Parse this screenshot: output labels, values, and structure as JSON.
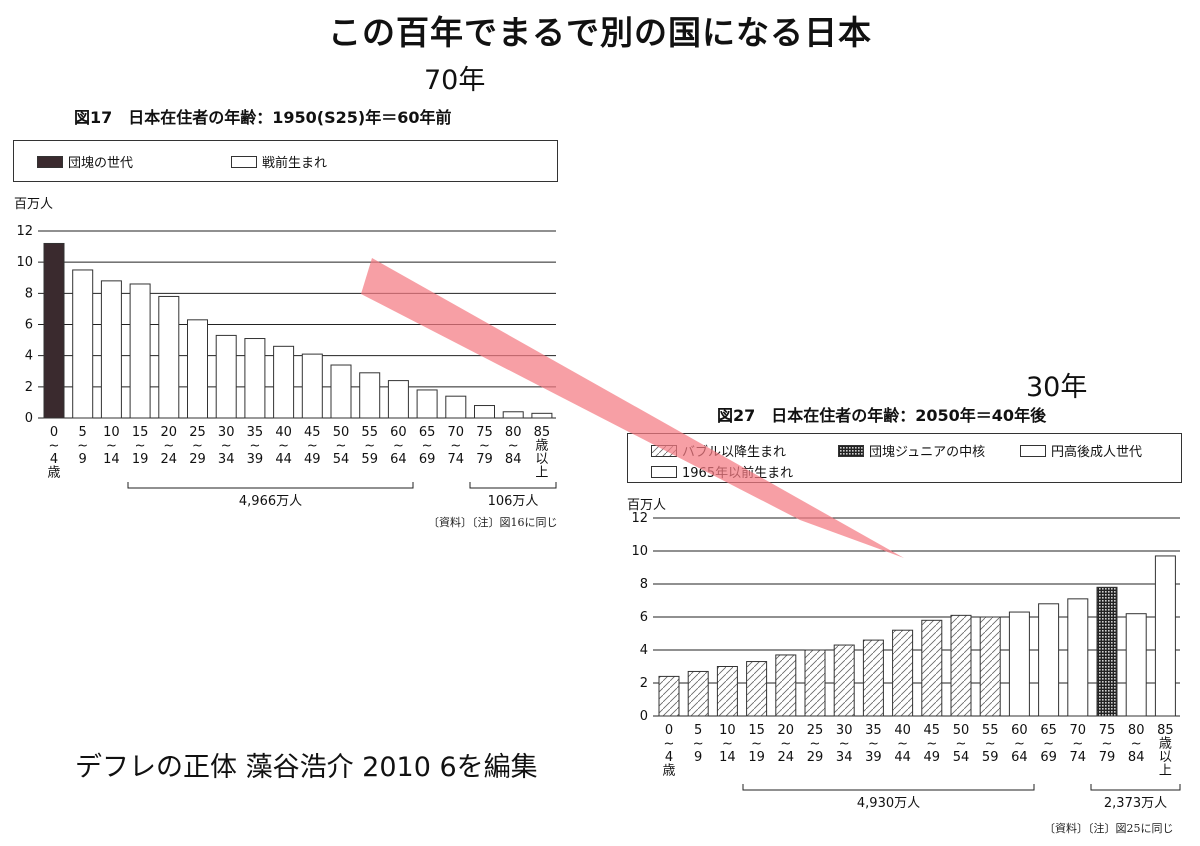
{
  "page_title": "この百年でまるで別の国になる日本",
  "annotations": {
    "fig17_correction": "70年",
    "fig27_correction": "30年"
  },
  "footer_caption": "デフレの正体 藻谷浩介 2010 6を編集",
  "colors": {
    "dankai": "#3a2a2e",
    "arrow": "#f47a82",
    "bar_outline": "#333333",
    "grid": "#222222"
  },
  "fig17": {
    "title": "図17　日本在住者の年齢：1950(S25)年＝60年前",
    "legend": [
      "団塊の世代",
      "戦前生まれ"
    ],
    "unit": "百万人",
    "brace_labels": [
      "4,966万人",
      "106万人"
    ],
    "source": "〔資料〕〔注〕図16に同じ"
  },
  "fig27": {
    "title": "図27　日本在住者の年齢：2050年＝40年後",
    "legend": [
      "バブル以降生まれ",
      "団塊ジュニアの中核",
      "円高後成人世代",
      "1965年以前生まれ"
    ],
    "unit": "百万人",
    "brace_labels": [
      "4,930万人",
      "2,373万人"
    ],
    "source": "〔資料〕〔注〕図25に同じ"
  },
  "chart_data": [
    {
      "type": "bar",
      "title": "図17　日本在住者の年齢：1950(S25)年＝60年前",
      "ylabel": "百万人",
      "ylim": [
        0,
        12
      ],
      "yticks": [
        0,
        2,
        4,
        6,
        8,
        10,
        12
      ],
      "categories": [
        "0~4歳",
        "5~9",
        "10~14",
        "15~19",
        "20~24",
        "25~29",
        "30~34",
        "35~39",
        "40~44",
        "45~49",
        "50~54",
        "55~59",
        "60~64",
        "65~69",
        "70~74",
        "75~79",
        "80~84",
        "85歳以上"
      ],
      "tick_labels": [
        [
          "0",
          "~",
          "4",
          "歳"
        ],
        [
          "5",
          "~",
          "9"
        ],
        [
          "10",
          "~",
          "14"
        ],
        [
          "15",
          "~",
          "19"
        ],
        [
          "20",
          "~",
          "24"
        ],
        [
          "25",
          "~",
          "29"
        ],
        [
          "30",
          "~",
          "34"
        ],
        [
          "35",
          "~",
          "39"
        ],
        [
          "40",
          "~",
          "44"
        ],
        [
          "45",
          "~",
          "49"
        ],
        [
          "50",
          "~",
          "54"
        ],
        [
          "55",
          "~",
          "59"
        ],
        [
          "60",
          "~",
          "64"
        ],
        [
          "65",
          "~",
          "69"
        ],
        [
          "70",
          "~",
          "74"
        ],
        [
          "75",
          "~",
          "79"
        ],
        [
          "80",
          "~",
          "84"
        ],
        [
          "85",
          "歳",
          "以",
          "上"
        ]
      ],
      "values": [
        11.2,
        9.5,
        8.8,
        8.6,
        7.8,
        6.3,
        5.3,
        5.1,
        4.6,
        4.1,
        3.4,
        2.9,
        2.4,
        1.8,
        1.4,
        0.8,
        0.4,
        0.3
      ],
      "styles": [
        "dankai",
        "white",
        "white",
        "white",
        "white",
        "white",
        "white",
        "white",
        "white",
        "white",
        "white",
        "white",
        "white",
        "white",
        "white",
        "white",
        "white",
        "white"
      ],
      "legend": [
        "団塊の世代",
        "戦前生まれ"
      ],
      "grid": true
    },
    {
      "type": "bar",
      "title": "図27　日本在住者の年齢：2050年＝40年後",
      "ylabel": "百万人",
      "ylim": [
        0,
        12
      ],
      "yticks": [
        0,
        2,
        4,
        6,
        8,
        10,
        12
      ],
      "categories": [
        "0~4歳",
        "5~9",
        "10~14",
        "15~19",
        "20~24",
        "25~29",
        "30~34",
        "35~39",
        "40~44",
        "45~49",
        "50~54",
        "55~59",
        "60~64",
        "65~69",
        "70~74",
        "75~79",
        "80~84",
        "85歳以上"
      ],
      "tick_labels": [
        [
          "0",
          "~",
          "4",
          "歳"
        ],
        [
          "5",
          "~",
          "9"
        ],
        [
          "10",
          "~",
          "14"
        ],
        [
          "15",
          "~",
          "19"
        ],
        [
          "20",
          "~",
          "24"
        ],
        [
          "25",
          "~",
          "29"
        ],
        [
          "30",
          "~",
          "34"
        ],
        [
          "35",
          "~",
          "39"
        ],
        [
          "40",
          "~",
          "44"
        ],
        [
          "45",
          "~",
          "49"
        ],
        [
          "50",
          "~",
          "54"
        ],
        [
          "55",
          "~",
          "59"
        ],
        [
          "60",
          "~",
          "64"
        ],
        [
          "65",
          "~",
          "69"
        ],
        [
          "70",
          "~",
          "74"
        ],
        [
          "75",
          "~",
          "79"
        ],
        [
          "80",
          "~",
          "84"
        ],
        [
          "85",
          "歳",
          "以",
          "上"
        ]
      ],
      "values": [
        2.4,
        2.7,
        3.0,
        3.3,
        3.7,
        4.0,
        4.3,
        4.6,
        5.2,
        5.8,
        6.1,
        6.0,
        6.3,
        6.8,
        7.1,
        7.8,
        6.2,
        9.7
      ],
      "styles": [
        "hatch",
        "hatch",
        "hatch",
        "hatch",
        "hatch",
        "hatch",
        "hatch",
        "hatch",
        "hatch",
        "hatch",
        "hatch",
        "hatch",
        "white",
        "white",
        "white",
        "checker",
        "white",
        "white"
      ],
      "legend": [
        "バブル以降生まれ",
        "団塊ジュニアの中核",
        "円高後成人世代",
        "1965年以前生まれ"
      ],
      "grid": true
    }
  ]
}
